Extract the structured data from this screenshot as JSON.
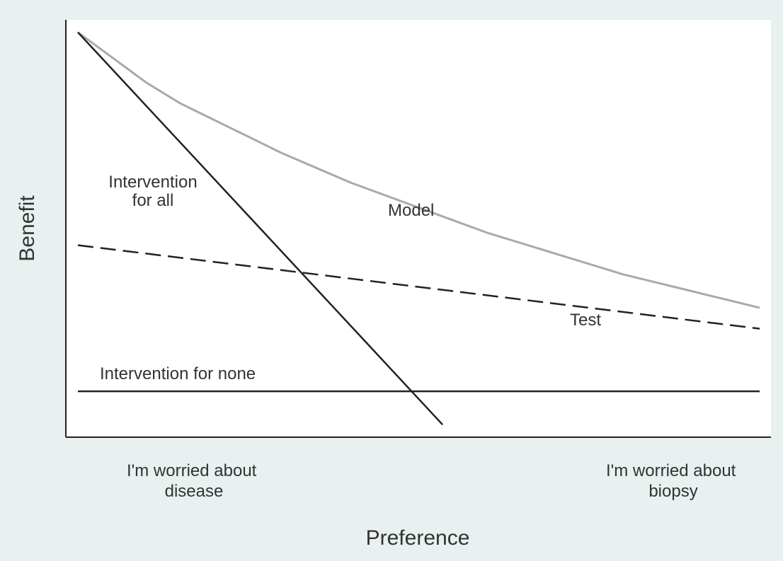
{
  "chart_data": {
    "type": "line",
    "title": "",
    "xlabel": "Preference",
    "ylabel": "Benefit",
    "x_tick_labels": [
      [
        "I'm worried about",
        "disease"
      ],
      [
        "I'm worried about",
        "biopsy"
      ]
    ],
    "xlim": [
      0,
      1
    ],
    "ylim": [
      0,
      1
    ],
    "grid": false,
    "series": [
      {
        "name": "Model",
        "label_lines": [
          "Model"
        ],
        "style": "solid",
        "color": "#a9a9a9",
        "x": [
          0,
          0.05,
          0.1,
          0.15,
          0.2,
          0.3,
          0.4,
          0.5,
          0.6,
          0.7,
          0.8,
          0.9,
          1.0
        ],
        "y": [
          0.97,
          0.91,
          0.85,
          0.8,
          0.76,
          0.68,
          0.61,
          0.55,
          0.49,
          0.44,
          0.39,
          0.35,
          0.31
        ]
      },
      {
        "name": "Test",
        "label_lines": [
          "Test"
        ],
        "style": "dashed",
        "color": "#222222",
        "x": [
          0,
          1
        ],
        "y": [
          0.46,
          0.26
        ]
      },
      {
        "name": "Intervention for all",
        "label_lines": [
          "Intervention",
          "for all"
        ],
        "style": "solid",
        "color": "#222222",
        "x": [
          0,
          0.535
        ],
        "y": [
          0.97,
          0.03
        ]
      },
      {
        "name": "Intervention for none",
        "label_lines": [
          "Intervention for none"
        ],
        "style": "solid",
        "color": "#222222",
        "x": [
          0,
          1
        ],
        "y": [
          0.11,
          0.11
        ]
      }
    ]
  },
  "colors": {
    "page_background": "#e8f0f0",
    "plot_background": "#ffffff",
    "axis": "#222222"
  }
}
